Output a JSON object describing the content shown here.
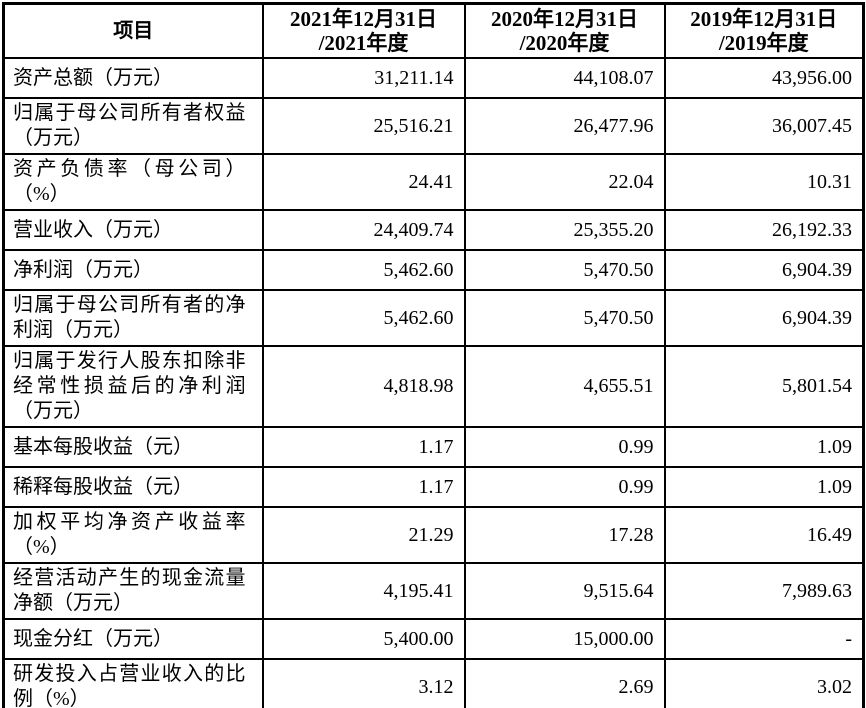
{
  "table": {
    "header": {
      "item": "项目",
      "periods": [
        "2021年12月31日\n/2021年度",
        "2020年12月31日\n/2020年度",
        "2019年12月31日\n/2019年度"
      ]
    },
    "rows": [
      {
        "label": "资产总额（万元）",
        "values": [
          "31,211.14",
          "44,108.07",
          "43,956.00"
        ]
      },
      {
        "label": "归属于母公司所有者权益（万元）",
        "values": [
          "25,516.21",
          "26,477.96",
          "36,007.45"
        ]
      },
      {
        "label": "资产负债率（母公司）（%）",
        "values": [
          "24.41",
          "22.04",
          "10.31"
        ]
      },
      {
        "label": "营业收入（万元）",
        "values": [
          "24,409.74",
          "25,355.20",
          "26,192.33"
        ]
      },
      {
        "label": "净利润（万元）",
        "values": [
          "5,462.60",
          "5,470.50",
          "6,904.39"
        ]
      },
      {
        "label": "归属于母公司所有者的净利润（万元）",
        "values": [
          "5,462.60",
          "5,470.50",
          "6,904.39"
        ]
      },
      {
        "label": "归属于发行人股东扣除非经常性损益后的净利润（万元）",
        "values": [
          "4,818.98",
          "4,655.51",
          "5,801.54"
        ]
      },
      {
        "label": "基本每股收益（元）",
        "values": [
          "1.17",
          "0.99",
          "1.09"
        ]
      },
      {
        "label": "稀释每股收益（元）",
        "values": [
          "1.17",
          "0.99",
          "1.09"
        ]
      },
      {
        "label": "加权平均净资产收益率（%）",
        "values": [
          "21.29",
          "17.28",
          "16.49"
        ]
      },
      {
        "label": "经营活动产生的现金流量净额（万元）",
        "values": [
          "4,195.41",
          "9,515.64",
          "7,989.63"
        ]
      },
      {
        "label": "现金分红（万元）",
        "values": [
          "5,400.00",
          "15,000.00",
          "-"
        ]
      },
      {
        "label": "研发投入占营业收入的比例（%）",
        "values": [
          "3.12",
          "2.69",
          "3.02"
        ]
      }
    ]
  }
}
